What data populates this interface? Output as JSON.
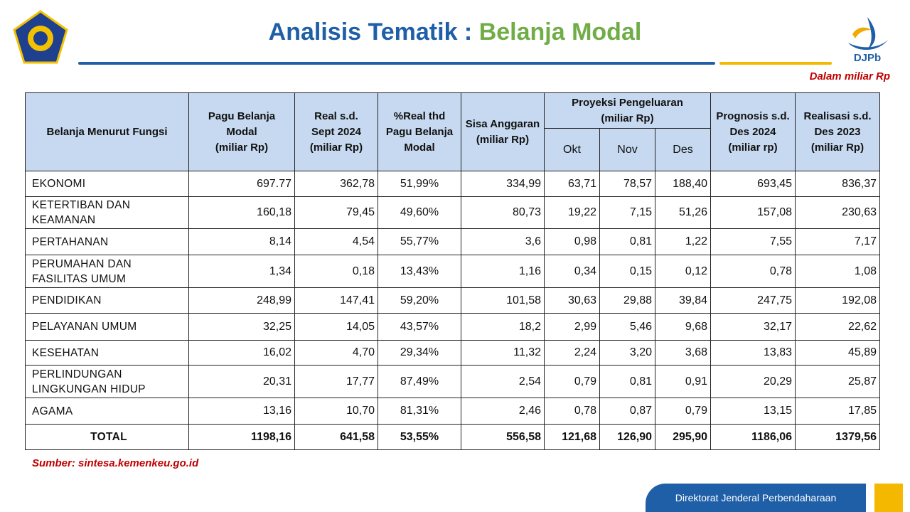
{
  "header": {
    "title": "Analisis Tematik :",
    "title_highlight": "Belanja Modal",
    "logo_label": "DJPb",
    "unit_note": "Dalam miliar Rp"
  },
  "table": {
    "columns_left": [
      "Belanja Menurut Fungsi",
      "Pagu Belanja\nModal\n(miliar Rp)",
      "Real s.d.\nSept 2024\n(miliar Rp)",
      "%Real thd\nPagu Belanja\nModal",
      "Sisa Anggaran\n(miliar Rp)"
    ],
    "group": {
      "label": "Proyeksi Pengeluaran\n(miliar Rp)",
      "months": [
        "Okt",
        "Nov",
        "Des"
      ]
    },
    "columns_right": [
      "Prognosis s.d.\nDes 2024\n(miliar rp)",
      "Realisasi s.d.\nDes 2023\n(miliar Rp)"
    ],
    "rows": [
      [
        "EKONOMI",
        "697.77",
        "362,78",
        "51,99%",
        "334,99",
        "63,71",
        "78,57",
        "188,40",
        "693,45",
        "836,37"
      ],
      [
        "KETERTIBAN DAN\nKEAMANAN",
        "160,18",
        "79,45",
        "49,60%",
        "80,73",
        "19,22",
        "7,15",
        "51,26",
        "157,08",
        "230,63"
      ],
      [
        "PERTAHANAN",
        "8,14",
        "4,54",
        "55,77%",
        "3,6",
        "0,98",
        "0,81",
        "1,22",
        "7,55",
        "7,17"
      ],
      [
        "PERUMAHAN DAN\nFASILITAS UMUM",
        "1,34",
        "0,18",
        "13,43%",
        "1,16",
        "0,34",
        "0,15",
        "0,12",
        "0,78",
        "1,08"
      ],
      [
        "PENDIDIKAN",
        "248,99",
        "147,41",
        "59,20%",
        "101,58",
        "30,63",
        "29,88",
        "39,84",
        "247,75",
        "192,08"
      ],
      [
        "PELAYANAN UMUM",
        "32,25",
        "14,05",
        "43,57%",
        "18,2",
        "2,99",
        "5,46",
        "9,68",
        "32,17",
        "22,62"
      ],
      [
        "KESEHATAN",
        "16,02",
        "4,70",
        "29,34%",
        "11,32",
        "2,24",
        "3,20",
        "3,68",
        "13,83",
        "45,89"
      ],
      [
        "PERLINDUNGAN\nLINGKUNGAN HIDUP",
        "20,31",
        "17,77",
        "87,49%",
        "2,54",
        "0,79",
        "0,81",
        "0,91",
        "20,29",
        "25,87"
      ],
      [
        "AGAMA",
        "13,16",
        "10,70",
        "81,31%",
        "2,46",
        "0,78",
        "0,87",
        "0,79",
        "13,15",
        "17,85"
      ]
    ],
    "total": [
      "TOTAL",
      "1198,16",
      "641,58",
      "53,55%",
      "556,58",
      "121,68",
      "126,90",
      "295,90",
      "1186,06",
      "1379,56"
    ]
  },
  "source": "Sumber: sintesa.kemenkeu.go.id",
  "footer": "Direktorat Jenderal Perbendaharaan"
}
